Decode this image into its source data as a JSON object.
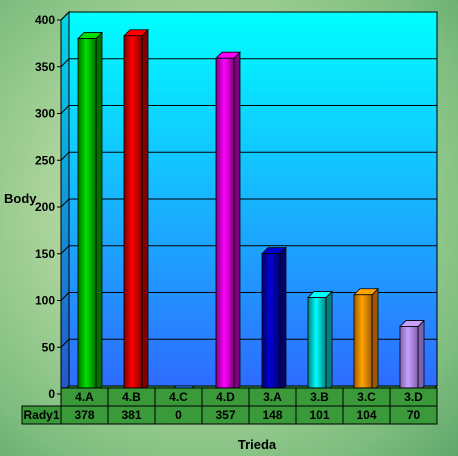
{
  "chart_data": {
    "type": "bar",
    "title": "",
    "xlabel": "Trieda",
    "ylabel": "Body",
    "categories": [
      "4.A",
      "4.B",
      "4.C",
      "4.D",
      "3.A",
      "3.B",
      "3.C",
      "3.D"
    ],
    "series": [
      {
        "name": "Rady1",
        "values": [
          378,
          381,
          0,
          357,
          148,
          101,
          104,
          70
        ]
      }
    ],
    "value_labels": [
      "378",
      "381",
      "0",
      "357",
      "148",
      "101",
      "104",
      "70"
    ],
    "ylim": [
      0,
      400
    ],
    "yticks": [
      0,
      50,
      100,
      150,
      200,
      250,
      300,
      350,
      400
    ],
    "ytick_labels": [
      "0",
      "50",
      "100",
      "150",
      "200",
      "250",
      "300",
      "350",
      "400"
    ],
    "grid": true,
    "legend": "none",
    "data_table": true,
    "bar_colors": [
      "#00e000",
      "#ff0000",
      "#1e90ff",
      "#ff00ff",
      "#0000d0",
      "#00ffff",
      "#ffa500",
      "#c8a0ff"
    ],
    "bar_shadow_colors": [
      "#007000",
      "#800000",
      "#004080",
      "#800080",
      "#000070",
      "#008080",
      "#a05800",
      "#8060b0"
    ],
    "plot_gradient": [
      "#00ffff",
      "#2e6cff"
    ],
    "floor_color": "#3a9a3a"
  }
}
